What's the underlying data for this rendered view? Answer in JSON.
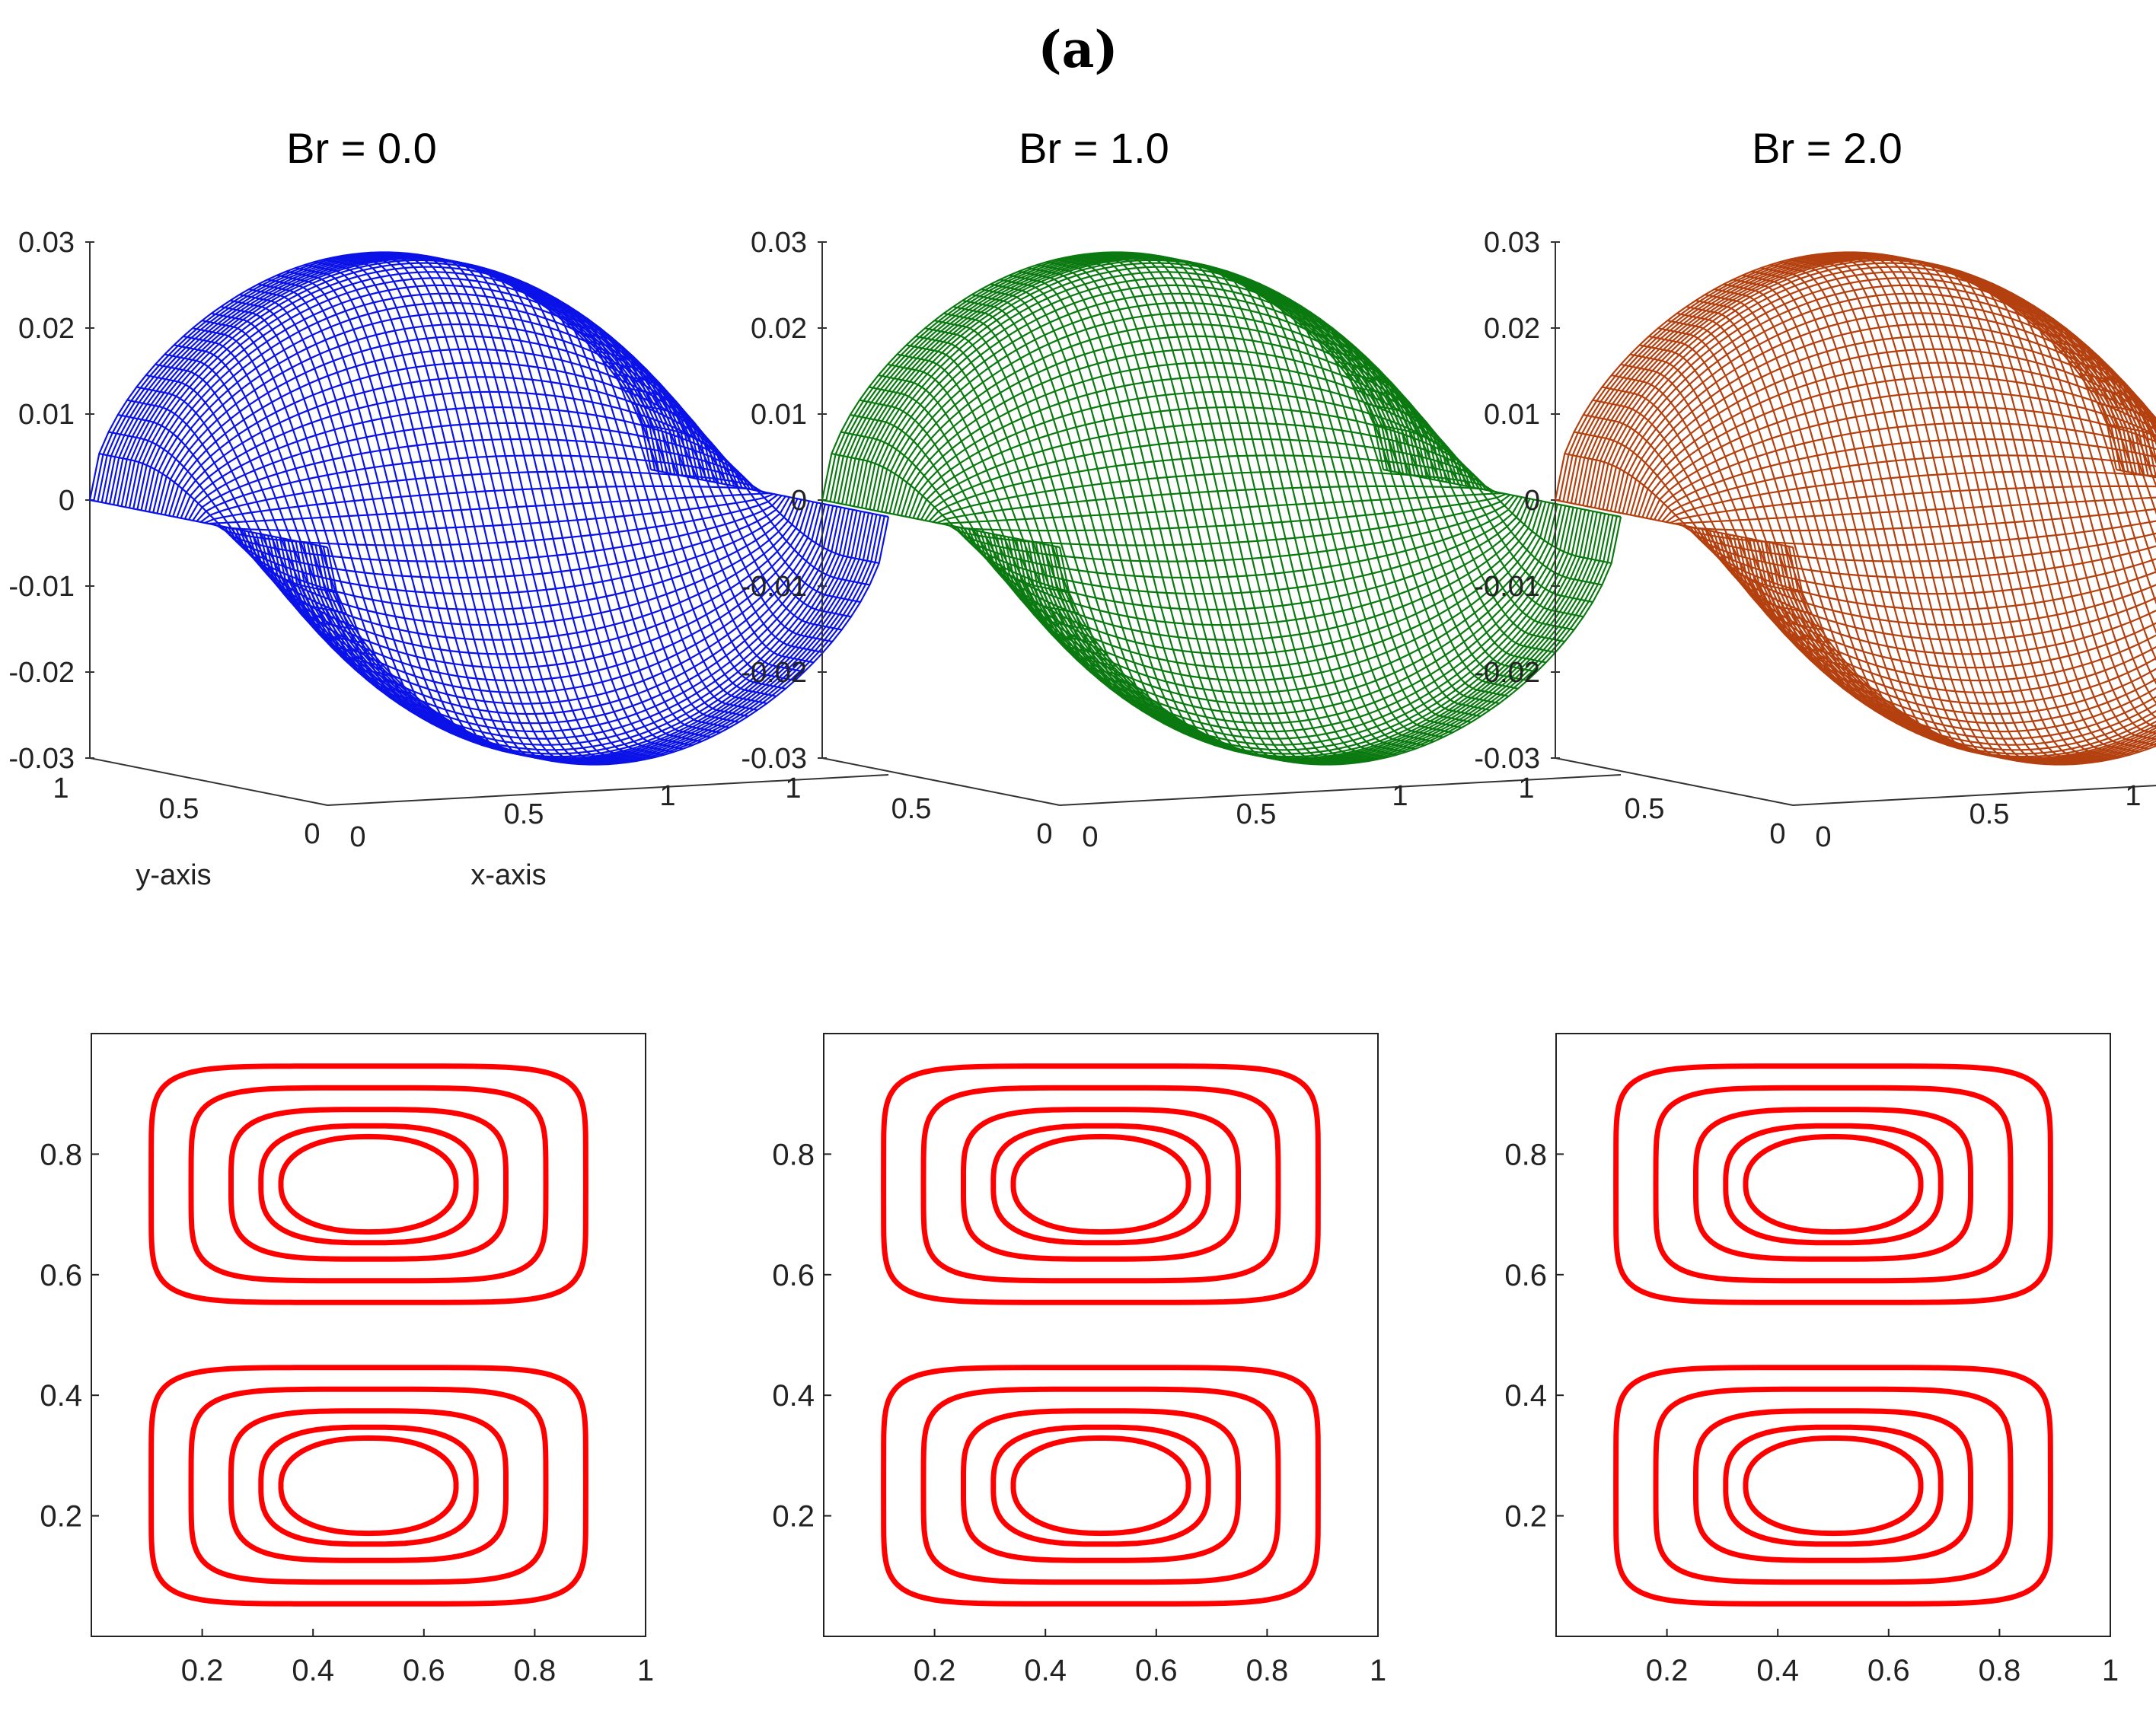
{
  "figure_label": "(a)",
  "chart_data": [
    {
      "type": "surface",
      "title": "Br = 0.0",
      "color": "#0a12e8",
      "zlim": [
        -0.03,
        0.03
      ],
      "z_ticks": [
        "0.03",
        "0.02",
        "0.01",
        "0",
        "-0.01",
        "-0.02",
        "-0.03"
      ],
      "y_ticks": [
        "1",
        "0.5",
        "0"
      ],
      "x_ticks": [
        "0",
        "0.5",
        "1"
      ],
      "xlabel": "x-axis",
      "ylabel": "y-axis",
      "zmax": 0.027,
      "zmin": -0.026
    },
    {
      "type": "surface",
      "title": "Br = 1.0",
      "color": "#0a7a10",
      "zlim": [
        -0.03,
        0.03
      ],
      "z_ticks": [
        "0.03",
        "0.02",
        "0.01",
        "0",
        "-0.01",
        "-0.02",
        "-0.03"
      ],
      "y_ticks": [
        "1",
        "0.5",
        "0"
      ],
      "x_ticks": [
        "0",
        "0.5",
        "1"
      ],
      "xlabel": "",
      "ylabel": "",
      "zmax": 0.027,
      "zmin": -0.026
    },
    {
      "type": "surface",
      "title": "Br = 2.0",
      "color": "#b3400e",
      "zlim": [
        -0.03,
        0.03
      ],
      "z_ticks": [
        "0.03",
        "0.02",
        "0.01",
        "0",
        "-0.01",
        "-0.02",
        "-0.03"
      ],
      "y_ticks": [
        "1",
        "0.5",
        "0"
      ],
      "x_ticks": [
        "0",
        "0.5",
        "1"
      ],
      "xlabel": "",
      "ylabel": "",
      "zmax": 0.027,
      "zmin": -0.026
    },
    {
      "type": "contour",
      "color": "#ff0000",
      "xlim": [
        0,
        1
      ],
      "ylim": [
        0,
        1
      ],
      "x_ticks": [
        0.2,
        0.4,
        0.6,
        0.8,
        1
      ],
      "y_ticks": [
        0.2,
        0.4,
        0.6,
        0.8
      ],
      "levels": [
        0.3,
        0.5,
        0.7,
        0.85,
        0.95
      ]
    },
    {
      "type": "contour",
      "color": "#ff0000",
      "xlim": [
        0,
        1
      ],
      "ylim": [
        0,
        1
      ],
      "x_ticks": [
        0.2,
        0.4,
        0.6,
        0.8,
        1
      ],
      "y_ticks": [
        0.2,
        0.4,
        0.6,
        0.8
      ],
      "levels": [
        0.3,
        0.5,
        0.7,
        0.85,
        0.95
      ]
    },
    {
      "type": "contour",
      "color": "#ff0000",
      "xlim": [
        0,
        1
      ],
      "ylim": [
        0,
        1
      ],
      "x_ticks": [
        0.2,
        0.4,
        0.6,
        0.8,
        1
      ],
      "y_ticks": [
        0.2,
        0.4,
        0.6,
        0.8
      ],
      "levels": [
        0.3,
        0.5,
        0.7,
        0.85,
        0.95
      ]
    }
  ]
}
